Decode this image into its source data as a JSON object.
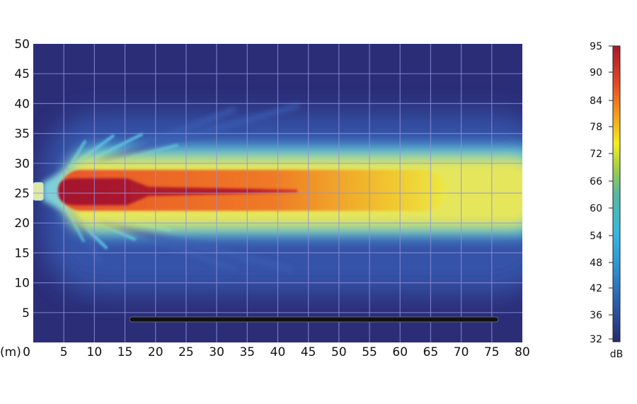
{
  "chart_data": {
    "type": "heatmap",
    "x_unit_label": "(m)",
    "xlim": [
      0,
      80
    ],
    "ylim": [
      0,
      50
    ],
    "x_ticks": [
      0,
      5,
      10,
      15,
      20,
      25,
      30,
      35,
      40,
      45,
      50,
      55,
      60,
      65,
      70,
      75,
      80
    ],
    "y_ticks": [
      5,
      10,
      15,
      20,
      25,
      30,
      35,
      40,
      45,
      50
    ],
    "grid": true,
    "colorbar": {
      "label": "dB",
      "range": [
        32,
        95
      ],
      "ticks": [
        95,
        90,
        84,
        78,
        72,
        66,
        60,
        54,
        48,
        42,
        36,
        32
      ],
      "colormap": [
        "#262a6e",
        "#2a6fb8",
        "#35b8e0",
        "#58c0a8",
        "#9ccc4a",
        "#f4ee1e",
        "#f5a21d",
        "#e84a25",
        "#a8172b"
      ],
      "placement": "right"
    },
    "background_level_db": 34,
    "source": {
      "x": [
        0,
        2
      ],
      "y": 25
    },
    "zones": [
      {
        "level_db": 93,
        "x": [
          5,
          43
        ],
        "y": [
          22.5,
          27.5
        ]
      },
      {
        "level_db": 86,
        "x": [
          5,
          63
        ],
        "y": [
          22,
          28
        ]
      },
      {
        "level_db": 72,
        "x": [
          5,
          80
        ],
        "y": [
          21,
          29
        ]
      },
      {
        "level_db": 52,
        "x": [
          6,
          80
        ],
        "y": [
          19,
          32
        ]
      },
      {
        "level_db": 42,
        "x": [
          8,
          80
        ],
        "y": [
          10,
          38
        ]
      }
    ],
    "barrier": {
      "x": [
        16,
        76
      ],
      "y": 4
    }
  }
}
